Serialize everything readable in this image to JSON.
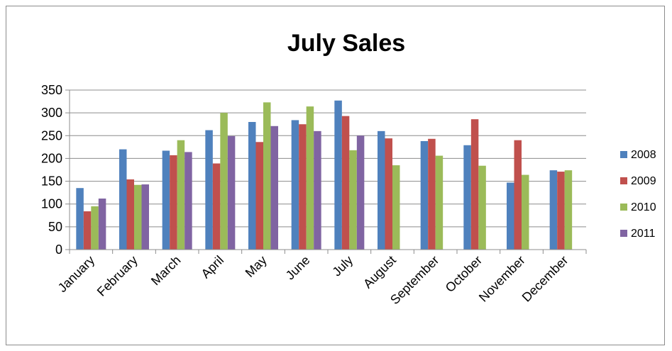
{
  "chart_data": {
    "type": "bar",
    "title": "July Sales",
    "xlabel": "",
    "ylabel": "",
    "ylim": [
      0,
      350
    ],
    "yticks": [
      0,
      50,
      100,
      150,
      200,
      250,
      300,
      350
    ],
    "grid": true,
    "legend_position": "right",
    "categories": [
      "January",
      "February",
      "March",
      "April",
      "May",
      "June",
      "July",
      "August",
      "September",
      "October",
      "November",
      "December"
    ],
    "series": [
      {
        "name": "2008",
        "color": "#4f81bd",
        "values": [
          135,
          220,
          217,
          262,
          280,
          284,
          327,
          260,
          238,
          229,
          147,
          174
        ]
      },
      {
        "name": "2009",
        "color": "#c0504d",
        "values": [
          84,
          154,
          207,
          189,
          236,
          275,
          293,
          244,
          243,
          286,
          240,
          171
        ]
      },
      {
        "name": "2010",
        "color": "#9bbb59",
        "values": [
          95,
          142,
          240,
          300,
          323,
          314,
          218,
          185,
          206,
          184,
          164,
          174
        ]
      },
      {
        "name": "2011",
        "color": "#8064a2",
        "values": [
          112,
          143,
          214,
          249,
          271,
          260,
          250,
          null,
          null,
          null,
          null,
          null
        ]
      }
    ]
  }
}
